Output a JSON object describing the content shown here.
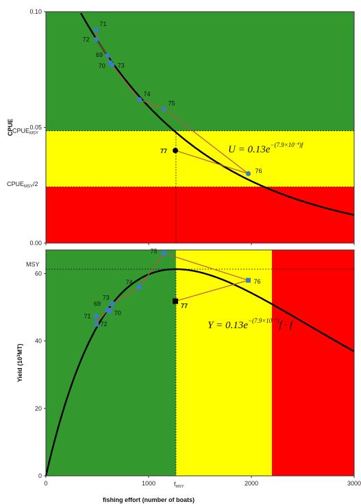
{
  "chart_data": [
    {
      "type": "line",
      "ylabel": "CPUE",
      "ylim": [
        0,
        0.1
      ],
      "xlim": [
        0,
        3000
      ],
      "yticks": [
        "0.00",
        "0.05",
        "0.10"
      ],
      "xticks": [
        "0",
        "1000",
        "2000",
        "3000"
      ],
      "ref_labels": {
        "cpue_msy": "CPUE",
        "cpue_msy_sub": "MSY",
        "half_cpue": "CPUE",
        "half_cpue_sub": "MSY",
        "half_suffix": "/2"
      },
      "cpue_msy": 0.0485,
      "half_cpue_msy": 0.0243,
      "zone_colors": {
        "green": "#33992e",
        "yellow": "#ffff00",
        "red": "#ff0000"
      },
      "equation": {
        "lhs": "U = 0.13",
        "base": "e",
        "exp": "−(7.9×10",
        "exp_pow": "−4",
        "exp_tail": ")",
        "var": "f"
      },
      "model": {
        "a": 0.13,
        "b": 0.00079
      },
      "points": [
        {
          "label": "69",
          "x": 600,
          "y": 0.081
        },
        {
          "label": "70",
          "x": 625,
          "y": 0.078
        },
        {
          "label": "71",
          "x": 490,
          "y": 0.092
        },
        {
          "label": "72",
          "x": 490,
          "y": 0.088
        },
        {
          "label": "73",
          "x": 645,
          "y": 0.077
        },
        {
          "label": "74",
          "x": 910,
          "y": 0.062
        },
        {
          "label": "75",
          "x": 1150,
          "y": 0.058
        },
        {
          "label": "76",
          "x": 1970,
          "y": 0.03
        }
      ],
      "path_order": [
        "71",
        "72",
        "69",
        "70",
        "73",
        "74",
        "75",
        "76",
        "77"
      ],
      "highlight": {
        "label": "77",
        "x": 1260,
        "y": 0.04
      },
      "colors": {
        "point": "#3a7fc1",
        "path": "#c0504d",
        "curve": "#000000"
      }
    },
    {
      "type": "line",
      "ylabel": "Yield (10",
      "ylabel_sup": "3",
      "ylabel_tail": "MT)",
      "xlabel": "fishing effort (number of boats)",
      "ylim": [
        0,
        67
      ],
      "xlim": [
        0,
        3000
      ],
      "yticks": [
        "0",
        "20",
        "40",
        "60"
      ],
      "xticks": [
        "0",
        "1000",
        "2000",
        "3000"
      ],
      "fmsy_label": "f",
      "fmsy_sub": "MSY",
      "fmsy": 1266,
      "msy_label": "MSY",
      "msy": 61.3,
      "yellow_end": 2200,
      "equation": {
        "lhs": "Y = 0.13",
        "base": "e",
        "exp": "−(7.9×10",
        "exp_pow": "−4",
        "exp_tail": ")",
        "var": "f · f"
      },
      "points": [
        {
          "label": "69",
          "x": 600,
          "y": 49.2
        },
        {
          "label": "70",
          "x": 625,
          "y": 48.9
        },
        {
          "label": "71",
          "x": 490,
          "y": 47.3
        },
        {
          "label": "72",
          "x": 490,
          "y": 45.0
        },
        {
          "label": "73",
          "x": 645,
          "y": 51.0
        },
        {
          "label": "74",
          "x": 910,
          "y": 56.0
        },
        {
          "label": "75",
          "x": 1150,
          "y": 66.0
        },
        {
          "label": "76",
          "x": 1970,
          "y": 58.0
        }
      ],
      "path_order": [
        "71",
        "72",
        "69",
        "70",
        "73",
        "74",
        "75",
        "76",
        "77"
      ],
      "highlight": {
        "label": "77",
        "x": 1260,
        "y": 51.8
      }
    }
  ]
}
